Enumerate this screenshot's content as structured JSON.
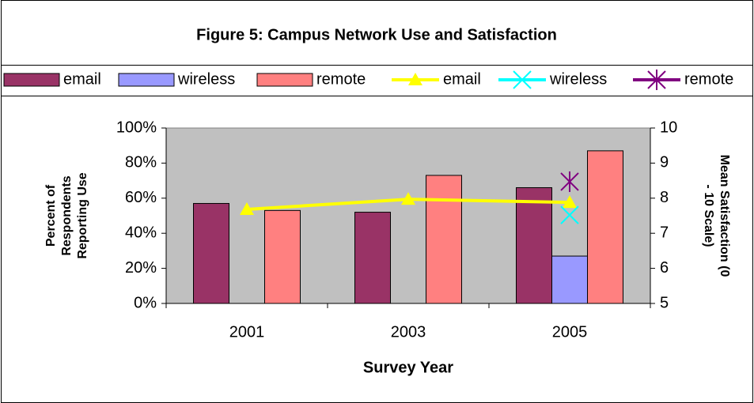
{
  "chart_data": {
    "type": "bar",
    "title": "Figure 5: Campus Network Use and Satisfaction",
    "xlabel": "Survey Year",
    "ylabel": [
      "Percent of",
      "Respondents",
      "Reporting Use"
    ],
    "y2label": [
      "Mean Satisfaction (0",
      "- 10 Scale)"
    ],
    "categories": [
      "2001",
      "2003",
      "2005"
    ],
    "series": [
      {
        "name": "email",
        "type": "bar",
        "color": "#993366",
        "values": [
          57,
          52,
          66
        ]
      },
      {
        "name": "wireless",
        "type": "bar",
        "color": "#9999ff",
        "values": [
          null,
          null,
          27
        ]
      },
      {
        "name": "remote",
        "type": "bar",
        "color": "#ff8080",
        "values": [
          53,
          73,
          87
        ]
      },
      {
        "name": "email",
        "type": "line",
        "axis": "y2",
        "color": "#ffff00",
        "marker": "triangle",
        "values": [
          7.68,
          7.97,
          7.88
        ]
      },
      {
        "name": "wireless",
        "type": "line",
        "axis": "y2",
        "color": "#00ffff",
        "marker": "x",
        "values": [
          null,
          null,
          7.52
        ]
      },
      {
        "name": "remote",
        "type": "line",
        "axis": "y2",
        "color": "#800080",
        "marker": "star",
        "values": [
          null,
          null,
          8.47
        ]
      }
    ],
    "ylim": [
      0,
      100
    ],
    "yticks": [
      {
        "value": 0,
        "label": "0%"
      },
      {
        "value": 20,
        "label": "20%"
      },
      {
        "value": 40,
        "label": "40%"
      },
      {
        "value": 60,
        "label": "60%"
      },
      {
        "value": 80,
        "label": "80%"
      },
      {
        "value": 100,
        "label": "100%"
      }
    ],
    "y2lim": [
      5,
      10
    ],
    "y2ticks": [
      5,
      6,
      7,
      8,
      9,
      10
    ],
    "grid": false,
    "plot_background": "#c0c0c0",
    "legend": "top"
  }
}
